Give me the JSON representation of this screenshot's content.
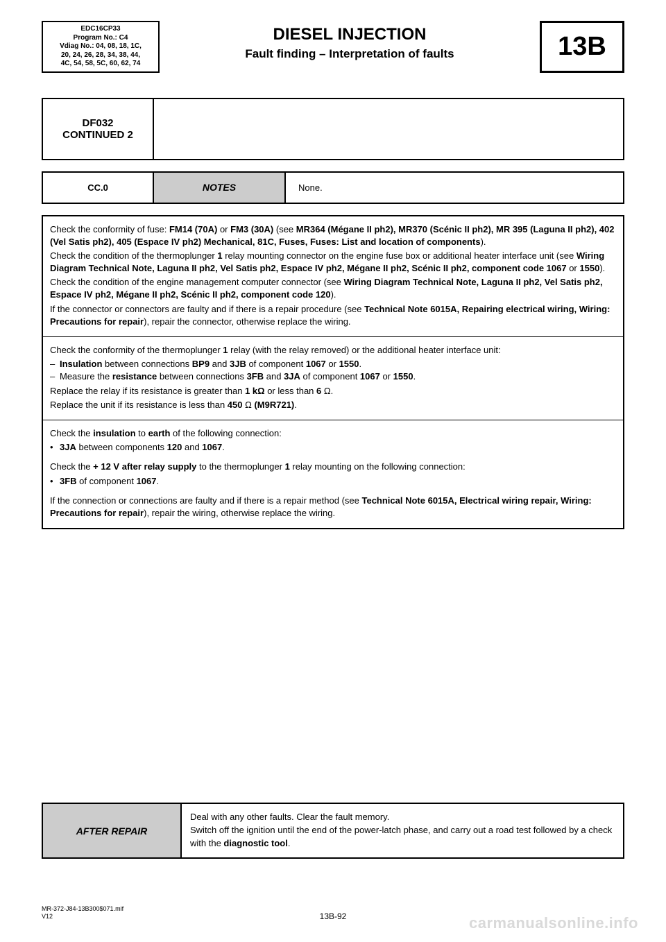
{
  "header": {
    "left_lines": [
      "EDC16CP33",
      "Program No.: C4",
      "Vdiag No.: 04, 08, 18, 1C,",
      "20, 24, 26, 28, 34, 38, 44,",
      "4C, 54, 58, 5C, 60, 62, 74"
    ],
    "title": "DIESEL INJECTION",
    "subtitle": "Fault finding – Interpretation of faults",
    "code": "13B"
  },
  "df": {
    "line1": "DF032",
    "line2": "CONTINUED 2"
  },
  "cc": {
    "code": "CC.0",
    "notes_label": "NOTES",
    "notes_value": "None."
  },
  "box1": {
    "p1": "Check the conformity of fuse: <b>FM14 (70A)</b> or <b>FM3 (30A)</b> (see <b>MR364 (Mégane II ph2), MR370 (Scénic II ph2), MR 395 (Laguna II ph2), 402 (Vel Satis ph2), 405 (Espace IV ph2) Mechanical, 81C, Fuses, Fuses: List and location of components</b>).",
    "p2": "Check the condition of the thermoplunger <b>1</b> relay mounting connector on the engine fuse box or additional heater interface unit (see <b>Wiring Diagram Technical Note, Laguna II ph2, Vel Satis ph2, Espace IV ph2, Mégane II ph2, Scénic II ph2, component code 1067</b> or <b>1550</b>).",
    "p3": "Check the condition of the engine management computer connector (see <b>Wiring Diagram Technical Note, Laguna II ph2, Vel Satis ph2, Espace IV ph2, Mégane II ph2, Scénic II ph2, component code 120</b>).",
    "p4": "If the connector or connectors are faulty and if there is a repair procedure (see <b>Technical Note 6015A, Repairing electrical wiring, Wiring: Precautions for repair</b>), repair the connector, otherwise replace the wiring."
  },
  "box2": {
    "p1": "Check the conformity of the thermoplunger <b>1</b> relay (with the relay removed) or the additional heater interface unit:",
    "li1": "<b>Insulation</b> between connections <b>BP9</b> and <b>3JB</b> of component <b>1067</b> or <b>1550</b>.",
    "li2": "Measure the <b>resistance</b> between connections <b>3FB</b> and <b>3JA</b> of component <b>1067</b> or <b>1550</b>.",
    "p2": "Replace the relay if its resistance is greater than <b>1 kΩ</b> or less than <b>6</b> Ω.",
    "p3": "Replace the unit if its resistance is less than <b>450</b> Ω <b>(M9R721)</b>."
  },
  "box3": {
    "p1": "Check the <b>insulation</b> to <b>earth</b> of the following connection:",
    "li1": "<b>3JA</b> between components <b>120</b> and <b>1067</b>.",
    "p2": "Check the <b>+ 12 V after relay supply</b> to the thermoplunger <b>1</b> relay mounting on the following connection:",
    "li2": "<b>3FB</b> of component <b>1067</b>.",
    "p3": "If the connection or connections are faulty and if there is a repair method (see <b>Technical Note 6015A, Electrical wiring repair, Wiring: Precautions for repair</b>), repair the wiring, otherwise replace the wiring."
  },
  "after": {
    "label": "AFTER REPAIR",
    "text": "Deal with any other faults. Clear the fault memory.<br>Switch off the ignition until the end of the power-latch phase, and carry out a road test followed by a check with the <b>diagnostic tool</b>."
  },
  "footer": {
    "ref": "MR-372-J84-13B300$071.mif",
    "ver": "V12",
    "page": "13B-92",
    "watermark": "carmanualsonline.info"
  },
  "colors": {
    "page_bg": "#ffffff",
    "text": "#000000",
    "grey_fill": "#cccccc",
    "watermark": "#d9d9d9"
  }
}
